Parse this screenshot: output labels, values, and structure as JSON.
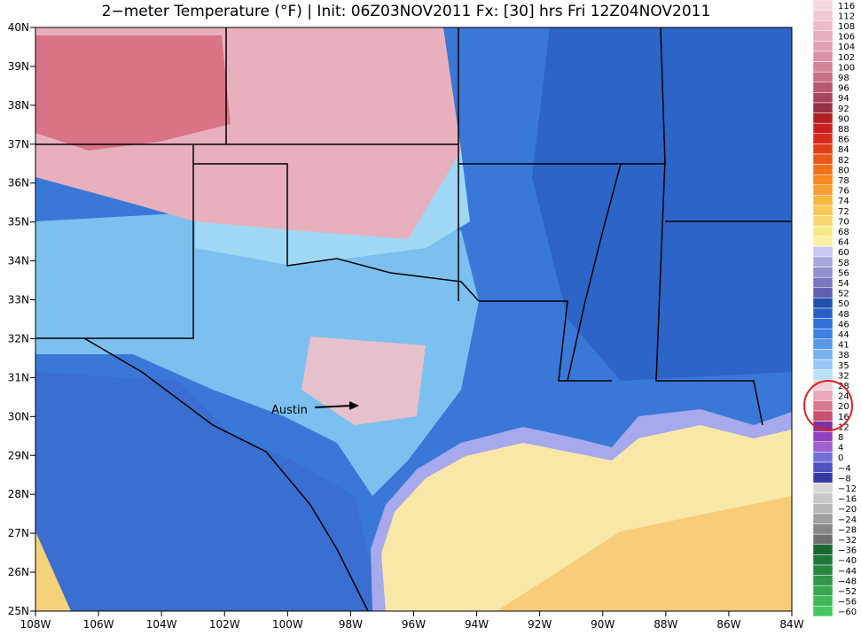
{
  "title": "2−meter Temperature (°F) | Init: 06Z03NOV2011 Fx: [30] hrs Fri 12Z04NOV2011",
  "annotation": "Austin",
  "lat_labels": [
    "40N",
    "39N",
    "38N",
    "37N",
    "36N",
    "35N",
    "34N",
    "33N",
    "32N",
    "31N",
    "30N",
    "29N",
    "28N",
    "27N",
    "26N",
    "25N"
  ],
  "lon_labels": [
    "108W",
    "106W",
    "104W",
    "102W",
    "100W",
    "98W",
    "96W",
    "94W",
    "92W",
    "90W",
    "88W",
    "86W",
    "84W"
  ],
  "colorbar": {
    "labels": [
      "116",
      "112",
      "108",
      "106",
      "104",
      "102",
      "100",
      "98",
      "96",
      "94",
      "92",
      "90",
      "88",
      "86",
      "84",
      "82",
      "80",
      "78",
      "76",
      "74",
      "72",
      "70",
      "68",
      "64",
      "60",
      "58",
      "56",
      "54",
      "52",
      "50",
      "48",
      "46",
      "44",
      "41",
      "38",
      "35",
      "32",
      "28",
      "24",
      "20",
      "16",
      "12",
      "8",
      "4",
      "0",
      "−4",
      "−8",
      "−12",
      "−16",
      "−20",
      "−24",
      "−28",
      "−32",
      "−36",
      "−40",
      "−44",
      "−48",
      "−52",
      "−56",
      "−60"
    ],
    "colors": [
      "#f7d8de",
      "#f2c8d0",
      "#eebcc6",
      "#e8aebb",
      "#e3a0b0",
      "#dc92a4",
      "#d48496",
      "#c86f84",
      "#b85870",
      "#a8445c",
      "#983048",
      "#b02020",
      "#c82020",
      "#d82a1c",
      "#e04018",
      "#e85818",
      "#f07018",
      "#f88820",
      "#f8a030",
      "#f8b840",
      "#f8c858",
      "#f8d870",
      "#f8e888",
      "#fff0a8",
      "#c8c8f0",
      "#a8a8e0",
      "#9090d0",
      "#7878c0",
      "#6060b0",
      "#2050b0",
      "#2860c8",
      "#3070d8",
      "#4080e0",
      "#5898e8",
      "#78b0f0",
      "#98c8f8",
      "#b8e0f8",
      "#f0d0d8",
      "#e8a8b8",
      "#d87890",
      "#c85070",
      "#8030a0",
      "#9040c0",
      "#a060d0",
      "#7070d8",
      "#5050c0",
      "#3838a8",
      "#d8d8d8",
      "#c8c8c8",
      "#b8b8b8",
      "#a0a0a0",
      "#888888",
      "#707070",
      "#186830",
      "#207838",
      "#288840",
      "#309848",
      "#38a850",
      "#40b858",
      "#48c860"
    ]
  }
}
